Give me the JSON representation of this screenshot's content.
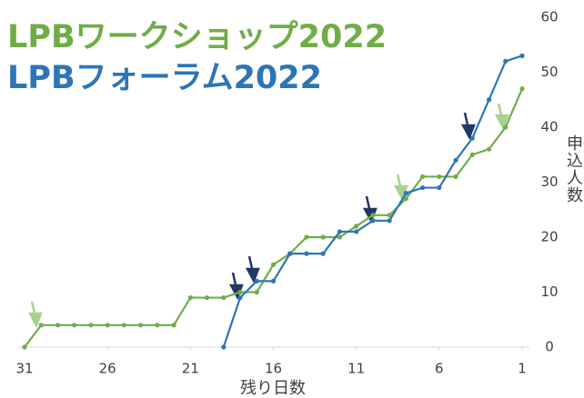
{
  "chart_data": {
    "type": "line",
    "x_label": "残り日数",
    "y_label": "申込人数",
    "x": [
      31,
      30,
      29,
      28,
      27,
      26,
      25,
      24,
      23,
      22,
      21,
      20,
      19,
      18,
      17,
      16,
      15,
      14,
      13,
      12,
      11,
      10,
      9,
      8,
      7,
      6,
      5,
      4,
      3,
      2,
      1
    ],
    "series": [
      {
        "name": "LPBワークショップ2022",
        "color": "#70ad47",
        "values": [
          0,
          4,
          4,
          4,
          4,
          4,
          4,
          4,
          4,
          4,
          9,
          9,
          9,
          10,
          10,
          15,
          17,
          20,
          20,
          20,
          22,
          24,
          24,
          27,
          31,
          31,
          31,
          35,
          36,
          40,
          47
        ]
      },
      {
        "name": "LPBフォーラム2022",
        "color": "#2e75b6",
        "values": [
          null,
          null,
          null,
          null,
          null,
          null,
          null,
          null,
          null,
          null,
          null,
          null,
          0,
          9,
          12,
          12,
          17,
          17,
          17,
          21,
          21,
          23,
          23,
          28,
          29,
          29,
          34,
          38,
          45,
          52,
          53
        ]
      }
    ],
    "xlim": [
      31,
      1
    ],
    "xticks": [
      31,
      26,
      21,
      16,
      11,
      6,
      1
    ],
    "ylim": [
      0,
      60
    ],
    "yticks": [
      0,
      10,
      20,
      30,
      40,
      50,
      60
    ]
  }
}
